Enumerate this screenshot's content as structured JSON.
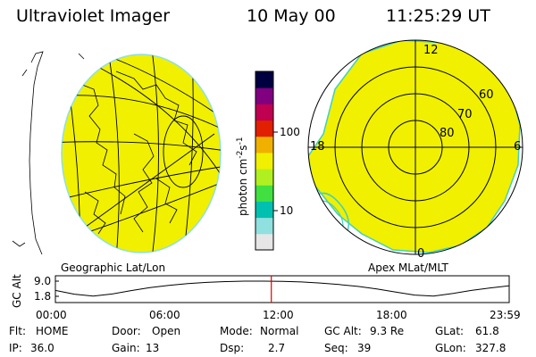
{
  "header": {
    "title": "Ultraviolet Imager",
    "date": "10 May 00",
    "time": "11:25:29 UT"
  },
  "colorbar": {
    "label": "photon cm^-2s^-1",
    "ticks": [
      "100",
      "10"
    ],
    "scale": "log",
    "colors": [
      "#e6e6e6",
      "#90e0e0",
      "#00c0b0",
      "#40e040",
      "#b0f020",
      "#f0f000",
      "#f0b000",
      "#e02000",
      "#c00050",
      "#800080",
      "#000040"
    ]
  },
  "maps": {
    "left_caption": "Geographic Lat/Lon",
    "right_caption": "Apex MLat/MLT",
    "fill_color": "#f0f000",
    "right_labels": {
      "top": "12",
      "left": "18",
      "right": "6",
      "bottom": "0",
      "lat60": "60",
      "lat70": "70",
      "lat80": "80"
    }
  },
  "altitude_plot": {
    "ylabel": "GC Alt",
    "yticks": [
      "9.0",
      "1.8"
    ],
    "ylim": [
      1.8,
      9.0
    ],
    "xticks": [
      "00:00",
      "06:00",
      "12:00",
      "18:00",
      "23:59"
    ],
    "marker_hours": 11.42,
    "marker_color": "#e00000",
    "curve_hours": [
      0,
      1,
      2,
      3,
      4,
      5,
      6,
      7,
      8,
      9,
      10,
      11,
      12,
      13,
      14,
      15,
      16,
      17,
      18,
      19,
      20,
      21,
      22,
      23,
      23.98
    ],
    "curve_alt": [
      4.6,
      2.8,
      1.9,
      2.9,
      4.5,
      5.9,
      7.0,
      7.8,
      8.4,
      8.8,
      9.0,
      9.0,
      8.9,
      8.6,
      8.1,
      7.4,
      6.5,
      5.3,
      3.8,
      2.4,
      1.9,
      3.1,
      4.6,
      5.8,
      6.8
    ]
  },
  "status": {
    "flt_label": "Flt:",
    "flt_value": "HOME",
    "ip_label": "IP:",
    "ip_value": "36.0",
    "door_label": "Door:",
    "door_value": "Open",
    "gain_label": "Gain:",
    "gain_value": "13",
    "mode_label": "Mode:",
    "mode_value": "Normal",
    "dsp_label": "Dsp:",
    "dsp_value": "2.7",
    "gcalt_label": "GC Alt:",
    "gcalt_value": "9.3 Re",
    "seq_label": "Seq:",
    "seq_value": "39",
    "glat_label": "GLat:",
    "glat_value": "61.8",
    "glon_label": "GLon:",
    "glon_value": "327.8"
  }
}
